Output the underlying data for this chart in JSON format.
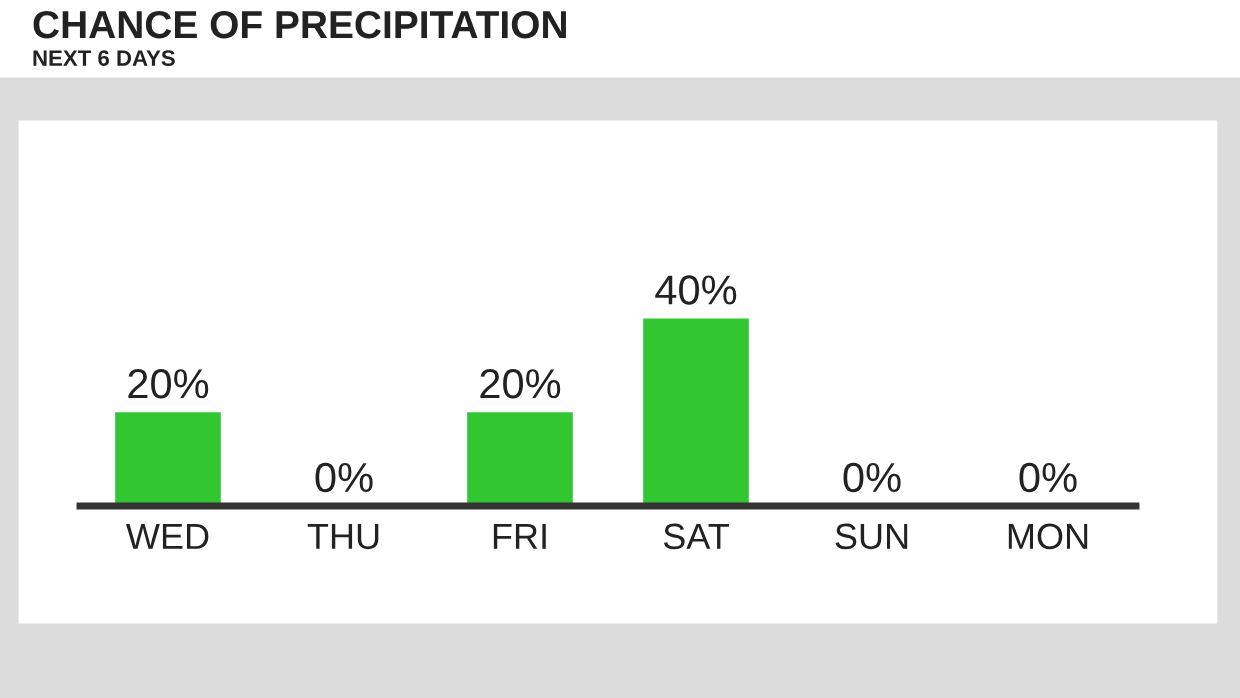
{
  "chart_data": {
    "type": "bar",
    "title": "CHANCE OF PRECIPITATION",
    "subtitle": "NEXT 6 DAYS",
    "categories": [
      "WED",
      "THU",
      "FRI",
      "SAT",
      "SUN",
      "MON"
    ],
    "values": [
      20,
      0,
      20,
      40,
      0,
      0
    ],
    "value_labels": [
      "20%",
      "0%",
      "20%",
      "40%",
      "0%",
      "0%"
    ],
    "color": "#33c633",
    "grid": false,
    "legend": false
  }
}
